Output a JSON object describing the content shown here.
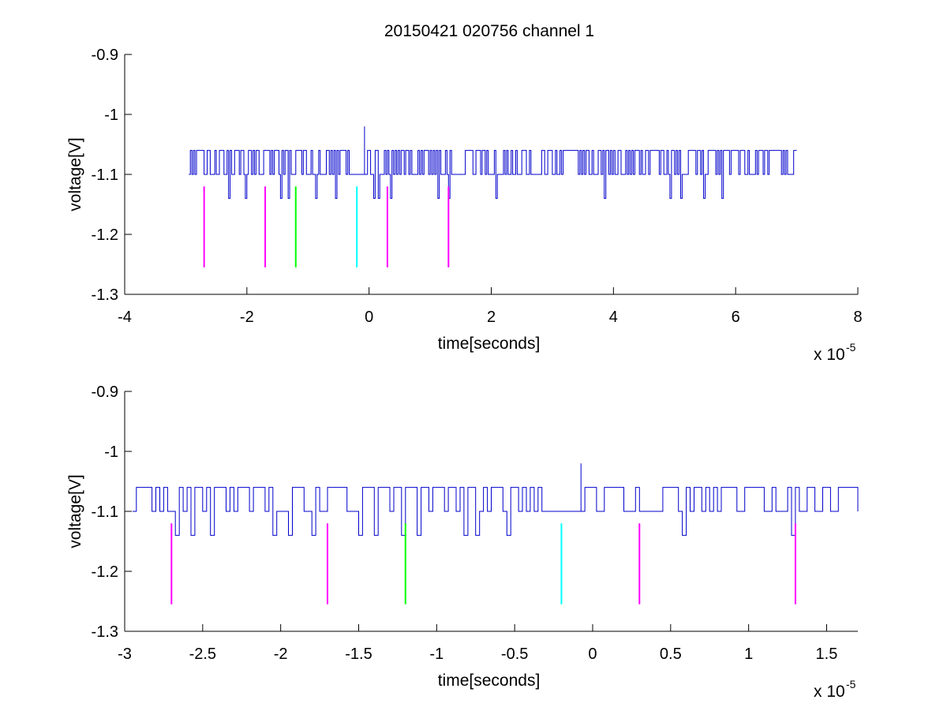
{
  "figure": {
    "title": "20150421 020756 channel 1"
  },
  "chart_data": [
    {
      "type": "line",
      "title": "20150421 020756 channel 1",
      "xlabel": "time[seconds]",
      "ylabel": "voltage[V]",
      "x_multiplier_base": "x 10",
      "x_multiplier_exp": "-5",
      "xlim": [
        -4,
        8
      ],
      "ylim": [
        -1.3,
        -0.9
      ],
      "xticks": [
        -4,
        -2,
        0,
        2,
        4,
        6,
        8
      ],
      "yticks": [
        -0.9,
        -1,
        -1.1,
        -1.2,
        -1.3
      ],
      "xtick_labels": [
        "-4",
        "-2",
        "0",
        "2",
        "4",
        "6",
        "8"
      ],
      "ytick_labels": [
        "-0.9",
        "-1",
        "-1.1",
        "-1.2",
        "-1.3"
      ],
      "grid": false,
      "signal": {
        "color": "#0000cc",
        "x_range": [
          -2.95,
          7.0
        ],
        "baseline": -1.1,
        "high": -1.06,
        "low": -1.14,
        "spike": {
          "x": -0.08,
          "y": -1.02
        },
        "quiet_segments": [
          [
            -0.35,
            -0.08
          ],
          [
            2.65,
            2.8
          ]
        ]
      },
      "markers": [
        {
          "x": -2.7,
          "y_top": -1.12,
          "y_bottom": -1.255,
          "color": "#ff00ff"
        },
        {
          "x": -1.7,
          "y_top": -1.12,
          "y_bottom": -1.255,
          "color": "#ff00ff"
        },
        {
          "x": -1.2,
          "y_top": -1.12,
          "y_bottom": -1.255,
          "color": "#00ff00"
        },
        {
          "x": -0.2,
          "y_top": -1.12,
          "y_bottom": -1.255,
          "color": "#00ffff"
        },
        {
          "x": 0.3,
          "y_top": -1.12,
          "y_bottom": -1.255,
          "color": "#ff00ff"
        },
        {
          "x": 1.3,
          "y_top": -1.12,
          "y_bottom": -1.255,
          "color": "#ff00ff"
        }
      ]
    },
    {
      "type": "line",
      "title": "",
      "xlabel": "time[seconds]",
      "ylabel": "voltage[V]",
      "x_multiplier_base": "x 10",
      "x_multiplier_exp": "-5",
      "xlim": [
        -3.0,
        1.7
      ],
      "ylim": [
        -1.3,
        -0.9
      ],
      "xticks": [
        -3,
        -2.5,
        -2,
        -1.5,
        -1,
        -0.5,
        0,
        0.5,
        1,
        1.5
      ],
      "yticks": [
        -0.9,
        -1,
        -1.1,
        -1.2,
        -1.3
      ],
      "xtick_labels": [
        "-3",
        "-2.5",
        "-2",
        "-1.5",
        "-1",
        "-0.5",
        "0",
        "0.5",
        "1",
        "1.5"
      ],
      "ytick_labels": [
        "-0.9",
        "-1",
        "-1.1",
        "-1.2",
        "-1.3"
      ],
      "grid": false,
      "signal": {
        "color": "#0000cc",
        "x_range": [
          -2.95,
          1.7
        ],
        "baseline": -1.1,
        "high": -1.06,
        "low": -1.14,
        "spike": {
          "x": -0.08,
          "y": -1.02
        },
        "quiet_segments": [
          [
            -0.35,
            -0.08
          ]
        ]
      },
      "markers": [
        {
          "x": -2.7,
          "y_top": -1.12,
          "y_bottom": -1.255,
          "color": "#ff00ff"
        },
        {
          "x": -1.7,
          "y_top": -1.12,
          "y_bottom": -1.255,
          "color": "#ff00ff"
        },
        {
          "x": -1.2,
          "y_top": -1.12,
          "y_bottom": -1.255,
          "color": "#00ff00"
        },
        {
          "x": -0.2,
          "y_top": -1.12,
          "y_bottom": -1.255,
          "color": "#00ffff"
        },
        {
          "x": 0.3,
          "y_top": -1.12,
          "y_bottom": -1.255,
          "color": "#ff00ff"
        },
        {
          "x": 1.3,
          "y_top": -1.12,
          "y_bottom": -1.255,
          "color": "#ff00ff"
        }
      ]
    }
  ]
}
